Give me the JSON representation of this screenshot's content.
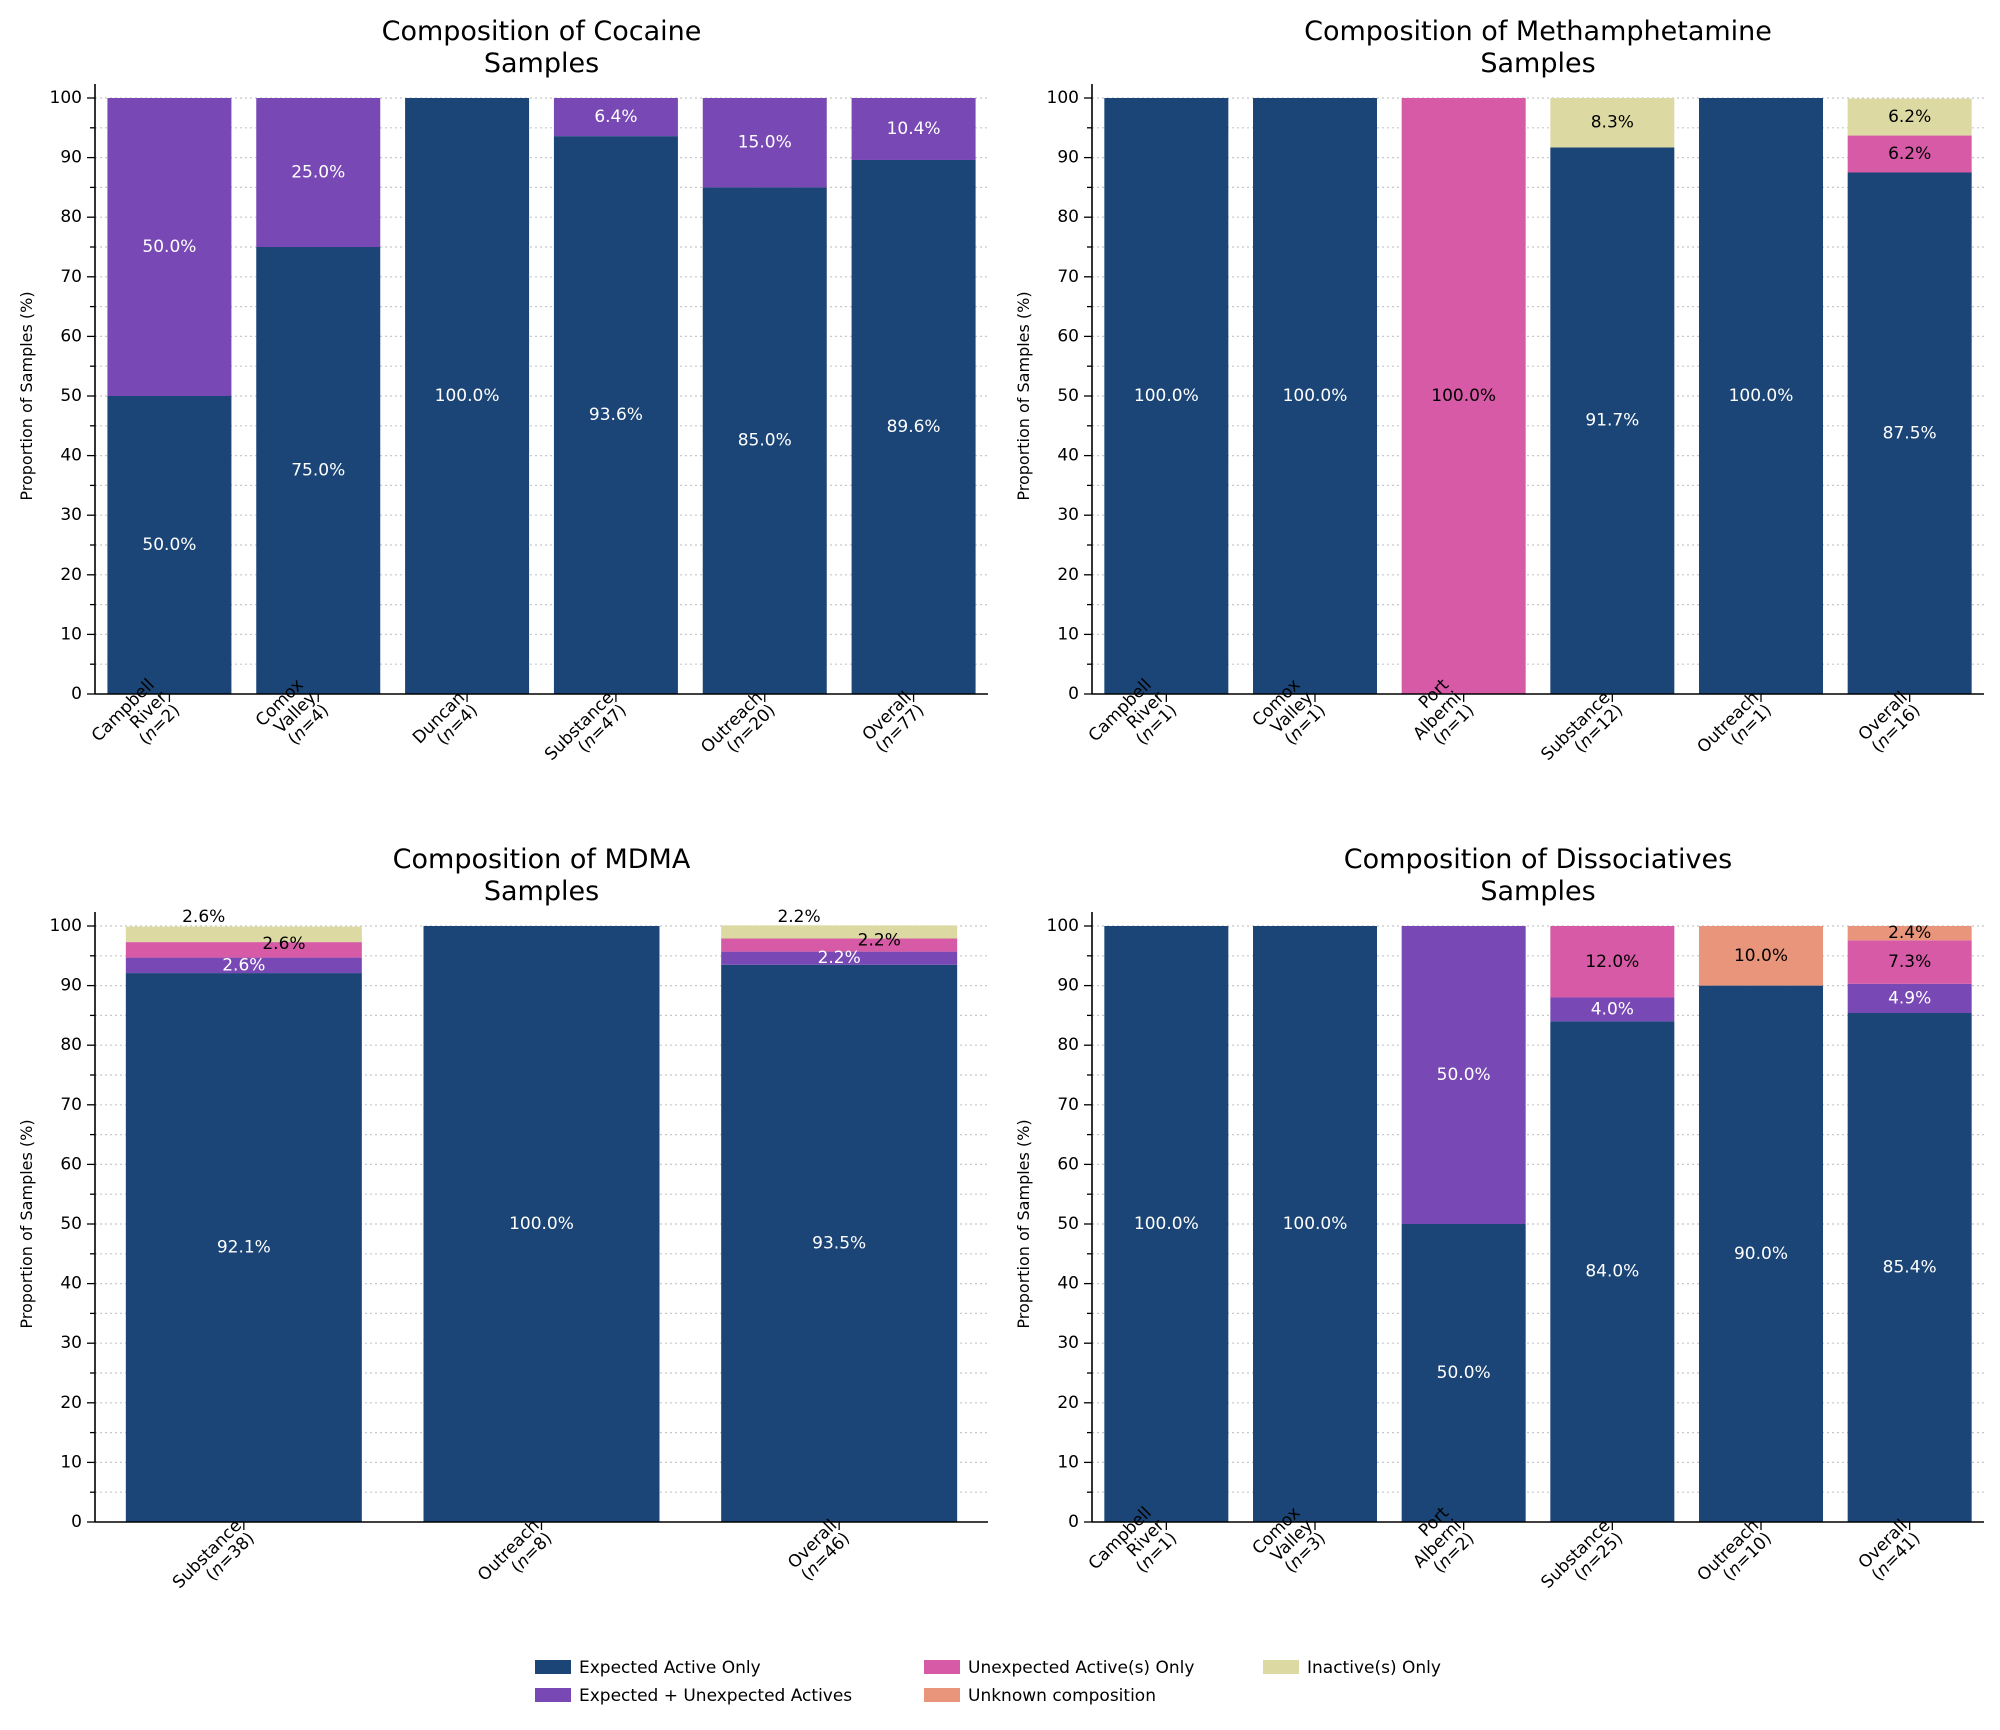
{
  "figure": {
    "ylabel": "Proportion of Samples (%)",
    "yticks": [
      "0",
      "10",
      "20",
      "30",
      "40",
      "50",
      "60",
      "70",
      "80",
      "90",
      "100"
    ]
  },
  "categories_meta": [
    {
      "key": "expected",
      "label": "Expected Active Only",
      "color": "#1a4576",
      "text_color": "#ffffff"
    },
    {
      "key": "exp_unexp",
      "label": "Expected + Unexpected Actives",
      "color": "#7849b5",
      "text_color": "#ffffff"
    },
    {
      "key": "unexp",
      "label": "Unexpected Active(s) Only",
      "color": "#d65aa6",
      "text_color": "#000000"
    },
    {
      "key": "unknown",
      "label": "Unknown composition",
      "color": "#e8957c",
      "text_color": "#000000"
    },
    {
      "key": "inactive",
      "label": "Inactive(s) Only",
      "color": "#dcd9a2",
      "text_color": "#000000"
    }
  ],
  "legend": {
    "items": [
      "Expected Active Only",
      "Expected + Unexpected Actives",
      "Unexpected Active(s) Only",
      "Unknown composition",
      "Inactive(s) Only"
    ],
    "placement": "bottom-center"
  },
  "chart_data": [
    {
      "type": "bar",
      "stacked": true,
      "title": [
        "Composition of Cocaine",
        "Samples"
      ],
      "ylabel": "Proportion of Samples (%)",
      "ylim": [
        0,
        100
      ],
      "categories": [
        {
          "lines": [
            "Campbell",
            "River"
          ],
          "n": "2"
        },
        {
          "lines": [
            "Comox",
            "Valley"
          ],
          "n": "4"
        },
        {
          "lines": [
            "Duncan"
          ],
          "n": "4"
        },
        {
          "lines": [
            "Substance"
          ],
          "n": "47"
        },
        {
          "lines": [
            "Outreach"
          ],
          "n": "20"
        },
        {
          "lines": [
            "Overall"
          ],
          "n": "77"
        }
      ],
      "series": [
        {
          "name": "Expected Active Only",
          "values": [
            50.0,
            75.0,
            100.0,
            93.6,
            85.0,
            89.6
          ]
        },
        {
          "name": "Expected + Unexpected Actives",
          "values": [
            50.0,
            25.0,
            0,
            6.4,
            15.0,
            10.4
          ]
        },
        {
          "name": "Unexpected Active(s) Only",
          "values": [
            0,
            0,
            0,
            0,
            0,
            0
          ]
        },
        {
          "name": "Unknown composition",
          "values": [
            0,
            0,
            0,
            0,
            0,
            0
          ]
        },
        {
          "name": "Inactive(s) Only",
          "values": [
            0,
            0,
            0,
            0,
            0,
            0
          ]
        }
      ],
      "data_labels": [
        {
          "bar": 0,
          "series": 0,
          "text": "50.0%"
        },
        {
          "bar": 0,
          "series": 1,
          "text": "50.0%"
        },
        {
          "bar": 1,
          "series": 0,
          "text": "75.0%"
        },
        {
          "bar": 1,
          "series": 1,
          "text": "25.0%"
        },
        {
          "bar": 2,
          "series": 0,
          "text": "100.0%"
        },
        {
          "bar": 3,
          "series": 0,
          "text": "93.6%"
        },
        {
          "bar": 3,
          "series": 1,
          "text": "6.4%"
        },
        {
          "bar": 4,
          "series": 0,
          "text": "85.0%"
        },
        {
          "bar": 4,
          "series": 1,
          "text": "15.0%"
        },
        {
          "bar": 5,
          "series": 0,
          "text": "89.6%"
        },
        {
          "bar": 5,
          "series": 1,
          "text": "10.4%"
        }
      ]
    },
    {
      "type": "bar",
      "stacked": true,
      "title": [
        "Composition of Methamphetamine",
        "Samples"
      ],
      "ylabel": "Proportion of Samples (%)",
      "ylim": [
        0,
        100
      ],
      "categories": [
        {
          "lines": [
            "Campbell",
            "River"
          ],
          "n": "1"
        },
        {
          "lines": [
            "Comox",
            "Valley"
          ],
          "n": "1"
        },
        {
          "lines": [
            "Port",
            "Alberni"
          ],
          "n": "1"
        },
        {
          "lines": [
            "Substance"
          ],
          "n": "12"
        },
        {
          "lines": [
            "Outreach"
          ],
          "n": "1"
        },
        {
          "lines": [
            "Overall"
          ],
          "n": "16"
        }
      ],
      "series": [
        {
          "name": "Expected Active Only",
          "values": [
            100.0,
            100.0,
            0,
            91.7,
            100.0,
            87.5
          ]
        },
        {
          "name": "Expected + Unexpected Actives",
          "values": [
            0,
            0,
            0,
            0,
            0,
            0
          ]
        },
        {
          "name": "Unexpected Active(s) Only",
          "values": [
            0,
            0,
            100.0,
            0,
            0,
            6.2
          ]
        },
        {
          "name": "Unknown composition",
          "values": [
            0,
            0,
            0,
            0,
            0,
            0
          ]
        },
        {
          "name": "Inactive(s) Only",
          "values": [
            0,
            0,
            0,
            8.3,
            0,
            6.2
          ]
        }
      ],
      "data_labels": [
        {
          "bar": 0,
          "series": 0,
          "text": "100.0%"
        },
        {
          "bar": 1,
          "series": 0,
          "text": "100.0%"
        },
        {
          "bar": 2,
          "series": 2,
          "text": "100.0%"
        },
        {
          "bar": 3,
          "series": 0,
          "text": "91.7%"
        },
        {
          "bar": 3,
          "series": 4,
          "text": "8.3%"
        },
        {
          "bar": 4,
          "series": 0,
          "text": "100.0%"
        },
        {
          "bar": 5,
          "series": 0,
          "text": "87.5%"
        },
        {
          "bar": 5,
          "series": 2,
          "text": "6.2%"
        },
        {
          "bar": 5,
          "series": 4,
          "text": "6.2%"
        }
      ]
    },
    {
      "type": "bar",
      "stacked": true,
      "title": [
        "Composition of MDMA",
        "Samples"
      ],
      "ylabel": "Proportion of Samples (%)",
      "ylim": [
        0,
        100
      ],
      "categories": [
        {
          "lines": [
            "Substance"
          ],
          "n": "38"
        },
        {
          "lines": [
            "Outreach"
          ],
          "n": "8"
        },
        {
          "lines": [
            "Overall"
          ],
          "n": "46"
        }
      ],
      "series": [
        {
          "name": "Expected Active Only",
          "values": [
            92.1,
            100.0,
            93.5
          ]
        },
        {
          "name": "Expected + Unexpected Actives",
          "values": [
            2.6,
            0,
            2.2
          ]
        },
        {
          "name": "Unexpected Active(s) Only",
          "values": [
            2.6,
            0,
            2.2
          ]
        },
        {
          "name": "Unknown composition",
          "values": [
            0,
            0,
            0
          ]
        },
        {
          "name": "Inactive(s) Only",
          "values": [
            2.6,
            0,
            2.2
          ]
        }
      ],
      "data_labels": [
        {
          "bar": 0,
          "series": 0,
          "text": "92.1%"
        },
        {
          "bar": 0,
          "series": 1,
          "text": "2.6%"
        },
        {
          "bar": 0,
          "series": 2,
          "text": "2.6%",
          "offset": "right"
        },
        {
          "bar": 0,
          "series": 4,
          "text": "2.6%",
          "offset": "above"
        },
        {
          "bar": 1,
          "series": 0,
          "text": "100.0%"
        },
        {
          "bar": 2,
          "series": 0,
          "text": "93.5%"
        },
        {
          "bar": 2,
          "series": 1,
          "text": "2.2%"
        },
        {
          "bar": 2,
          "series": 2,
          "text": "2.2%",
          "offset": "right"
        },
        {
          "bar": 2,
          "series": 4,
          "text": "2.2%",
          "offset": "above"
        }
      ]
    },
    {
      "type": "bar",
      "stacked": true,
      "title": [
        "Composition of Dissociatives",
        "Samples"
      ],
      "ylabel": "Proportion of Samples (%)",
      "ylim": [
        0,
        100
      ],
      "categories": [
        {
          "lines": [
            "Campbell",
            "River"
          ],
          "n": "1"
        },
        {
          "lines": [
            "Comox",
            "Valley"
          ],
          "n": "3"
        },
        {
          "lines": [
            "Port",
            "Alberni"
          ],
          "n": "2"
        },
        {
          "lines": [
            "Substance"
          ],
          "n": "25"
        },
        {
          "lines": [
            "Outreach"
          ],
          "n": "10"
        },
        {
          "lines": [
            "Overall"
          ],
          "n": "41"
        }
      ],
      "series": [
        {
          "name": "Expected Active Only",
          "values": [
            100.0,
            100.0,
            50.0,
            84.0,
            90.0,
            85.4
          ]
        },
        {
          "name": "Expected + Unexpected Actives",
          "values": [
            0,
            0,
            50.0,
            4.0,
            0,
            4.9
          ]
        },
        {
          "name": "Unexpected Active(s) Only",
          "values": [
            0,
            0,
            0,
            12.0,
            0,
            7.3
          ]
        },
        {
          "name": "Unknown composition",
          "values": [
            0,
            0,
            0,
            0,
            10.0,
            2.4
          ]
        },
        {
          "name": "Inactive(s) Only",
          "values": [
            0,
            0,
            0,
            0,
            0,
            0
          ]
        }
      ],
      "data_labels": [
        {
          "bar": 0,
          "series": 0,
          "text": "100.0%"
        },
        {
          "bar": 1,
          "series": 0,
          "text": "100.0%"
        },
        {
          "bar": 2,
          "series": 0,
          "text": "50.0%"
        },
        {
          "bar": 2,
          "series": 1,
          "text": "50.0%"
        },
        {
          "bar": 3,
          "series": 0,
          "text": "84.0%"
        },
        {
          "bar": 3,
          "series": 1,
          "text": "4.0%"
        },
        {
          "bar": 3,
          "series": 2,
          "text": "12.0%"
        },
        {
          "bar": 4,
          "series": 0,
          "text": "90.0%"
        },
        {
          "bar": 4,
          "series": 3,
          "text": "10.0%"
        },
        {
          "bar": 5,
          "series": 0,
          "text": "85.4%"
        },
        {
          "bar": 5,
          "series": 1,
          "text": "4.9%"
        },
        {
          "bar": 5,
          "series": 2,
          "text": "7.3%"
        },
        {
          "bar": 5,
          "series": 3,
          "text": "2.4%"
        }
      ]
    }
  ]
}
